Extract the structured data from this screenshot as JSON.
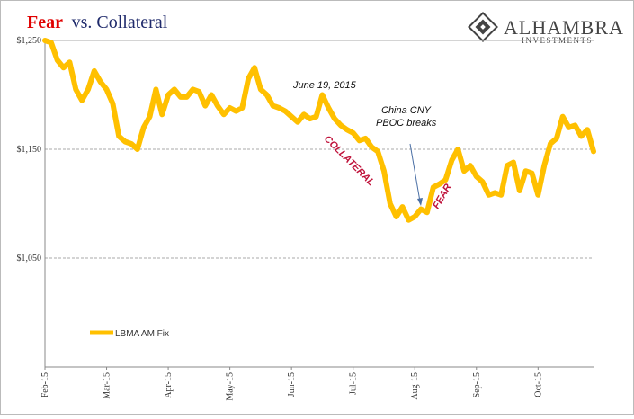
{
  "chart_data": {
    "type": "line",
    "title_parts": [
      "Fear",
      "vs. Collateral"
    ],
    "categories": [
      "Feb-15",
      null,
      null,
      null,
      null,
      null,
      null,
      null,
      null,
      null,
      "Mar-15",
      null,
      null,
      null,
      null,
      null,
      null,
      null,
      null,
      null,
      "Apr-15",
      null,
      null,
      null,
      null,
      null,
      null,
      null,
      null,
      null,
      "May-15",
      null,
      null,
      null,
      null,
      null,
      null,
      null,
      null,
      null,
      "Jun-15",
      null,
      null,
      null,
      null,
      null,
      null,
      null,
      null,
      null,
      "Jul-15",
      null,
      null,
      null,
      null,
      null,
      null,
      null,
      null,
      null,
      "Aug-15",
      null,
      null,
      null,
      null,
      null,
      null,
      null,
      null,
      null,
      "Sep-15",
      null,
      null,
      null,
      null,
      null,
      null,
      null,
      null,
      null,
      "Oct-15",
      null,
      null,
      null,
      null,
      null,
      null,
      null,
      null,
      null
    ],
    "series": [
      {
        "name": "LBMA AM Fix",
        "color": "#FFC000",
        "values": [
          1250,
          1248,
          1232,
          1225,
          1230,
          1205,
          1195,
          1205,
          1222,
          1212,
          1205,
          1192,
          1162,
          1157,
          1155,
          1150,
          1170,
          1180,
          1205,
          1182,
          1200,
          1205,
          1198,
          1198,
          1205,
          1203,
          1190,
          1200,
          1190,
          1182,
          1188,
          1185,
          1188,
          1215,
          1225,
          1205,
          1200,
          1190,
          1188,
          1185,
          1180,
          1175,
          1182,
          1178,
          1180,
          1200,
          1188,
          1178,
          1172,
          1168,
          1165,
          1158,
          1160,
          1152,
          1148,
          1130,
          1100,
          1088,
          1097,
          1085,
          1088,
          1095,
          1092,
          1115,
          1118,
          1122,
          1140,
          1150,
          1130,
          1135,
          1125,
          1120,
          1108,
          1110,
          1108,
          1135,
          1138,
          1112,
          1130,
          1128,
          1108,
          1135,
          1155,
          1160,
          1180,
          1170,
          1172,
          1162,
          1168,
          1148
        ]
      }
    ],
    "ylim": [
      950,
      1250
    ],
    "yticks": [
      {
        "value": 1050,
        "label": "$1,050"
      },
      {
        "value": 1150,
        "label": "$1,150"
      },
      {
        "value": 1250,
        "label": "$1,250"
      }
    ],
    "grid": true,
    "annotations": [
      "June 19, 2015",
      "China CNY",
      "PBOC breaks",
      "COLLATERAL",
      "FEAR"
    ]
  },
  "logo": {
    "name": "ALHAMBRA",
    "tagline": "INVESTMENTS"
  }
}
